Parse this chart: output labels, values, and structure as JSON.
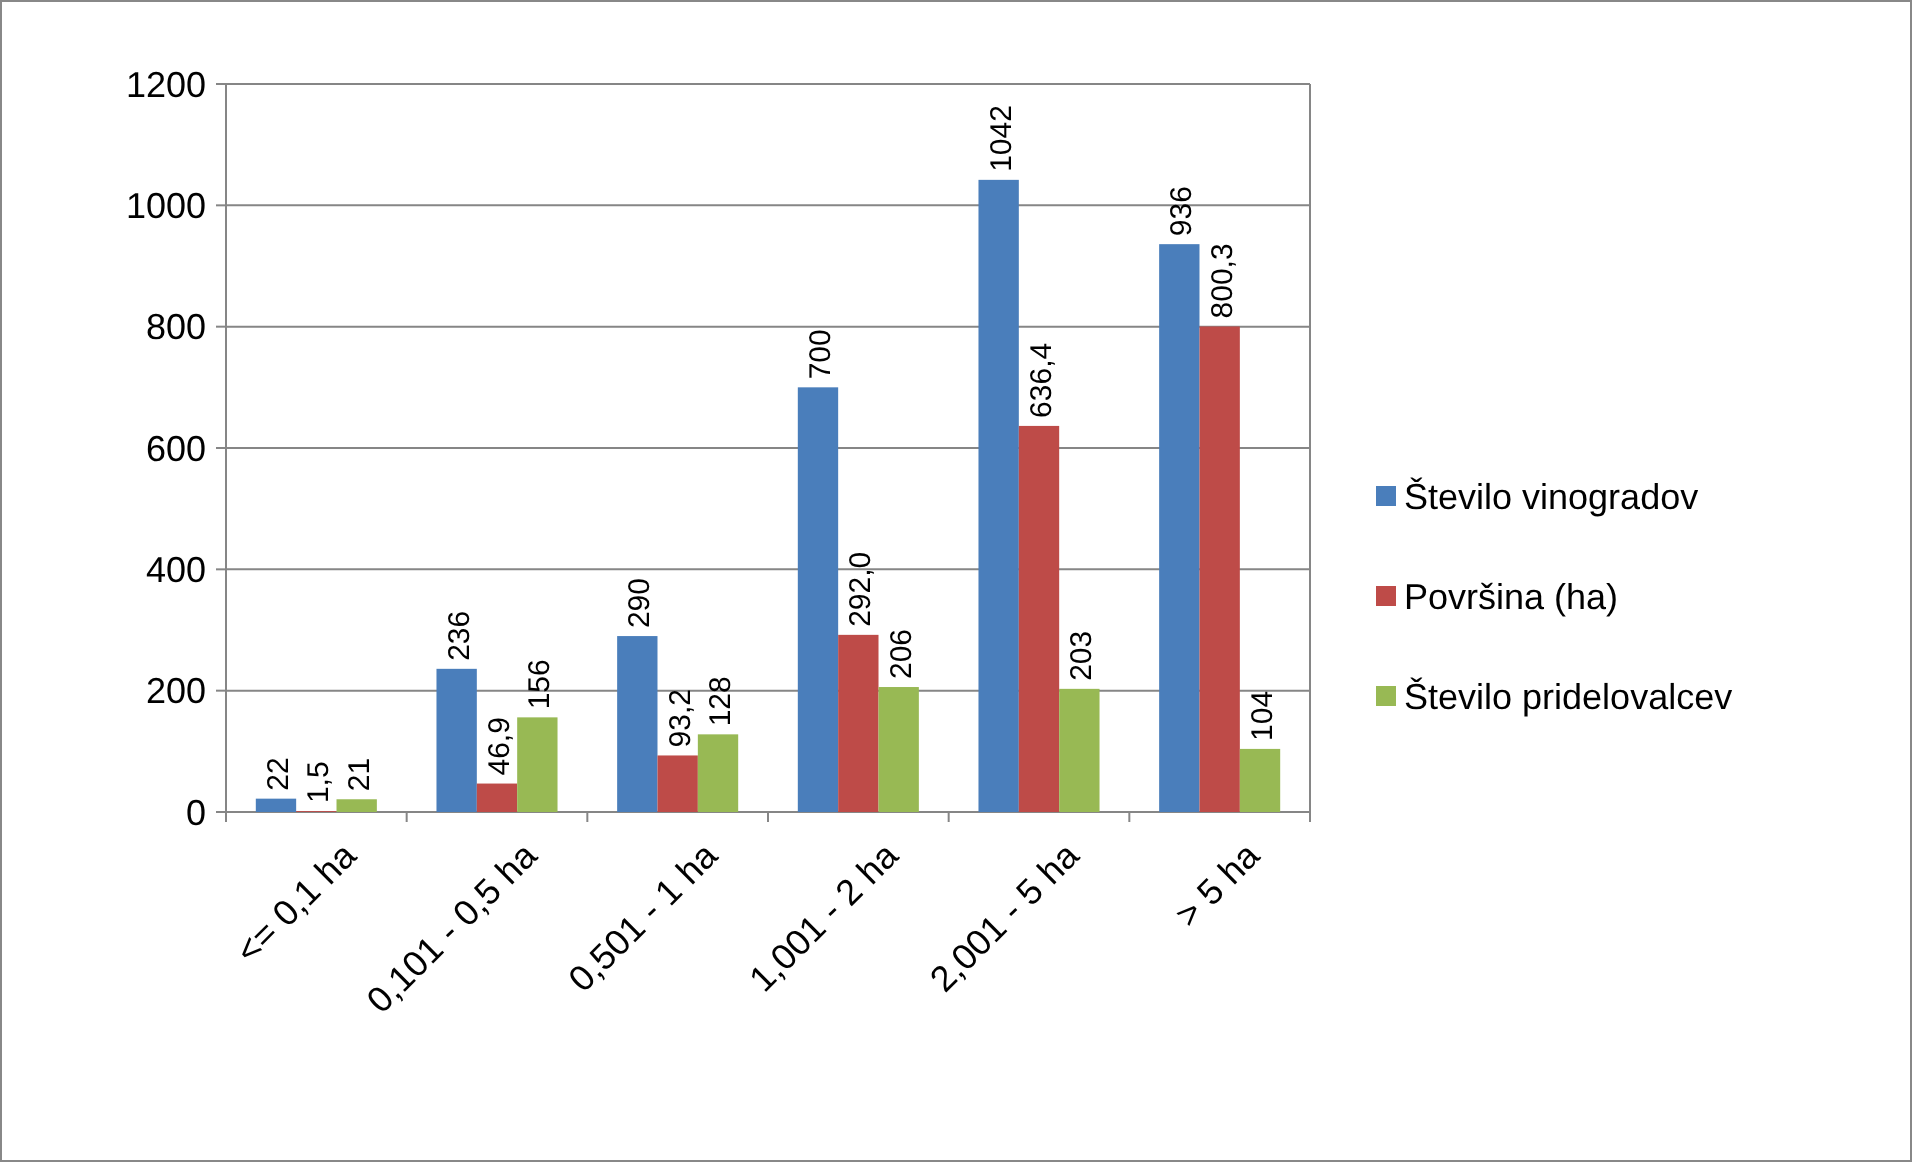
{
  "chart_data": {
    "type": "bar",
    "categories": [
      "<= 0,1 ha",
      "0,101 - 0,5 ha",
      "0,501 - 1 ha",
      "1,001 - 2 ha",
      "2,001 - 5 ha",
      "> 5 ha"
    ],
    "series": [
      {
        "name": "Število vinogradov",
        "color": "#4a7ebb",
        "values": [
          22,
          236,
          290,
          700,
          1042,
          936
        ],
        "value_labels": [
          "22",
          "236",
          "290",
          "700",
          "1042",
          "936"
        ]
      },
      {
        "name": "Površina (ha)",
        "color": "#be4b48",
        "values": [
          1.5,
          46.9,
          93.2,
          292.0,
          636.4,
          800.3
        ],
        "value_labels": [
          "1,5",
          "46,9",
          "93,2",
          "292,0",
          "636,4",
          "800,3"
        ]
      },
      {
        "name": "Število pridelovalcev",
        "color": "#98b954",
        "values": [
          21,
          156,
          128,
          206,
          203,
          104
        ],
        "value_labels": [
          "21",
          "156",
          "128",
          "206",
          "203",
          "104"
        ]
      }
    ],
    "ylim": [
      0,
      1200
    ],
    "yticks": [
      0,
      200,
      400,
      600,
      800,
      1000,
      1200
    ],
    "grid": "y",
    "legend": "right"
  }
}
